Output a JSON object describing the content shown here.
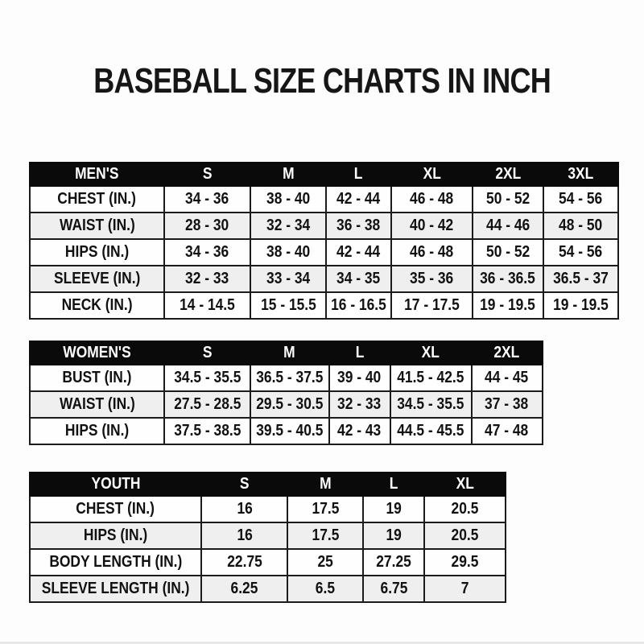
{
  "title": "BASEBALL SIZE CHARTS IN INCH",
  "colors": {
    "header_bg": "#0a0a0a",
    "header_text": "#ffffff",
    "row_alt_bg": "#efefef",
    "border": "#1b1b1b",
    "text": "#111111",
    "page_bg": "#fdfdfd"
  },
  "tables": [
    {
      "name": "MEN'S",
      "sizes": [
        "S",
        "M",
        "L",
        "XL",
        "2XL",
        "3XL"
      ],
      "rows": [
        {
          "label": "CHEST (IN.)",
          "values": [
            "34 - 36",
            "38 - 40",
            "42 - 44",
            "46 - 48",
            "50 - 52",
            "54 - 56"
          ]
        },
        {
          "label": "WAIST (IN.)",
          "values": [
            "28 - 30",
            "32 - 34",
            "36 - 38",
            "40 - 42",
            "44 - 46",
            "48 - 50"
          ]
        },
        {
          "label": "HIPS (IN.)",
          "values": [
            "34 - 36",
            "38 - 40",
            "42 - 44",
            "46 - 48",
            "50 - 52",
            "54 - 56"
          ]
        },
        {
          "label": "SLEEVE (IN.)",
          "values": [
            "32 - 33",
            "33 - 34",
            "34 - 35",
            "35 - 36",
            "36 - 36.5",
            "36.5 - 37"
          ]
        },
        {
          "label": "NECK (IN.)",
          "values": [
            "14 - 14.5",
            "15 - 15.5",
            "16 - 16.5",
            "17 - 17.5",
            "19 - 19.5",
            "19 - 19.5"
          ]
        }
      ]
    },
    {
      "name": "WOMEN'S",
      "sizes": [
        "S",
        "M",
        "L",
        "XL",
        "2XL"
      ],
      "rows": [
        {
          "label": "BUST (IN.)",
          "values": [
            "34.5 - 35.5",
            "36.5 - 37.5",
            "39 - 40",
            "41.5 - 42.5",
            "44 - 45"
          ]
        },
        {
          "label": "WAIST (IN.)",
          "values": [
            "27.5 - 28.5",
            "29.5 - 30.5",
            "32 - 33",
            "34.5 - 35.5",
            "37 - 38"
          ]
        },
        {
          "label": "HIPS (IN.)",
          "values": [
            "37.5 - 38.5",
            "39.5 - 40.5",
            "42 - 43",
            "44.5 - 45.5",
            "47 - 48"
          ]
        }
      ]
    },
    {
      "name": "YOUTH",
      "sizes": [
        "S",
        "M",
        "L",
        "XL"
      ],
      "rows": [
        {
          "label": "CHEST (IN.)",
          "values": [
            "16",
            "17.5",
            "19",
            "20.5"
          ]
        },
        {
          "label": "HIPS (IN.)",
          "values": [
            "16",
            "17.5",
            "19",
            "20.5"
          ]
        },
        {
          "label": "BODY LENGTH (IN.)",
          "values": [
            "22.75",
            "25",
            "27.25",
            "29.5"
          ]
        },
        {
          "label": "SLEEVE LENGTH (IN.)",
          "values": [
            "6.25",
            "6.5",
            "6.75",
            "7"
          ]
        }
      ]
    }
  ]
}
